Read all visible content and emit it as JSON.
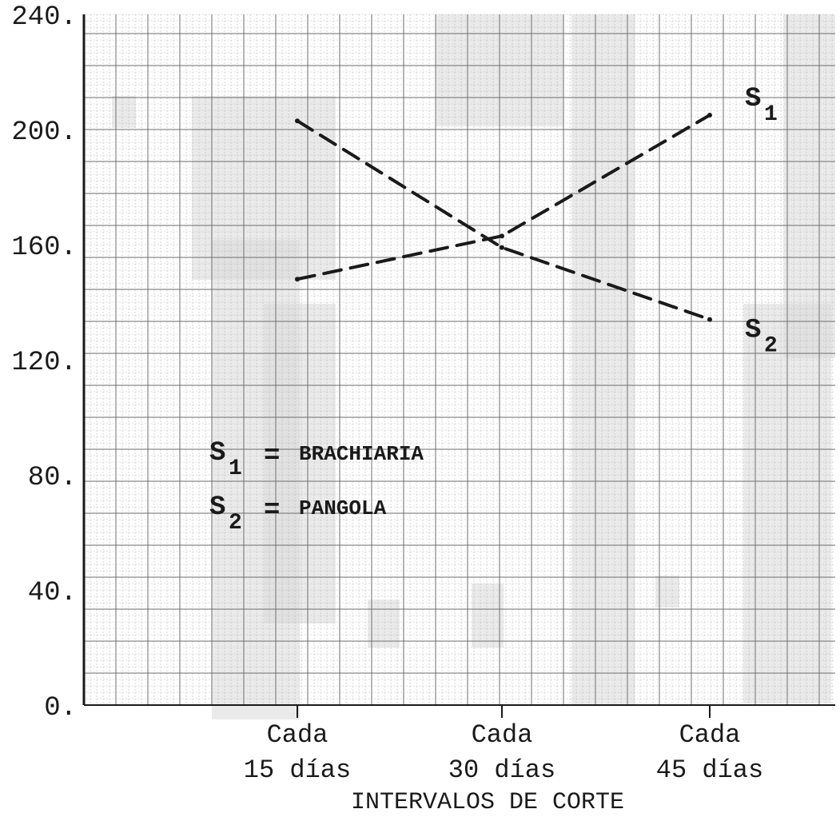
{
  "chart_data": {
    "type": "line",
    "title": "",
    "xlabel": "INTERVALOS DE CORTE",
    "ylabel": "",
    "ylim": [
      0,
      240
    ],
    "yticks": [
      "0.",
      "40.",
      "80.",
      "120.",
      "160.",
      "200.",
      "240."
    ],
    "categories": [
      {
        "line1": "Cada",
        "line2": "15 días"
      },
      {
        "line1": "Cada",
        "line2": "30 días"
      },
      {
        "line1": "Cada",
        "line2": "45 días"
      }
    ],
    "series": [
      {
        "label": "S",
        "sub": "1",
        "values": [
          148,
          163,
          205
        ]
      },
      {
        "label": "S",
        "sub": "2",
        "values": [
          203,
          159,
          134
        ]
      }
    ],
    "legend": [
      {
        "symbol": "S",
        "sub": "1",
        "eq": "=",
        "text": "BRACHIARIA"
      },
      {
        "symbol": "S",
        "sub": "2",
        "eq": "=",
        "text": "PANGOLA"
      }
    ],
    "grid": true,
    "line_style": "dashed",
    "colors": {
      "line": "#1a1a1a",
      "grid_major": "#6e6e6e",
      "grid_minor": "#b8b8b8",
      "shade": "#d9d9d9"
    }
  }
}
